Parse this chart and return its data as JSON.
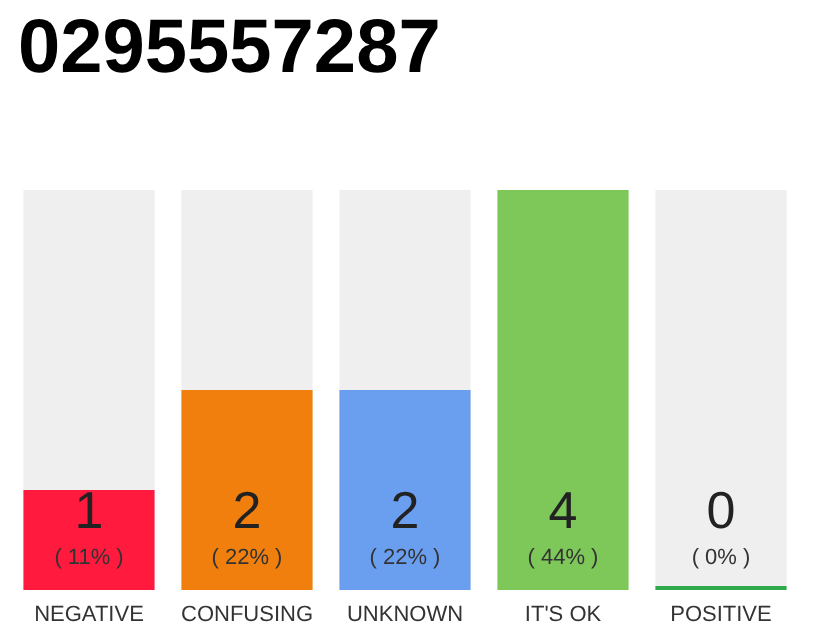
{
  "chart_data": {
    "type": "bar",
    "title": "0295557287",
    "categories": [
      "NEGATIVE",
      "CONFUSING",
      "UNKNOWN",
      "IT'S OK",
      "POSITIVE"
    ],
    "values": [
      1,
      2,
      2,
      4,
      0
    ],
    "colors": [
      "#ff1a3e",
      "#f07f0e",
      "#6a9ff0",
      "#7ec85a",
      "#2eaa4a"
    ],
    "value_labels": [
      "1\n( 11% )",
      "2\n( 22% )",
      "2\n( 22% )",
      "4\n( 44% )",
      "0\n( 0% )"
    ]
  }
}
